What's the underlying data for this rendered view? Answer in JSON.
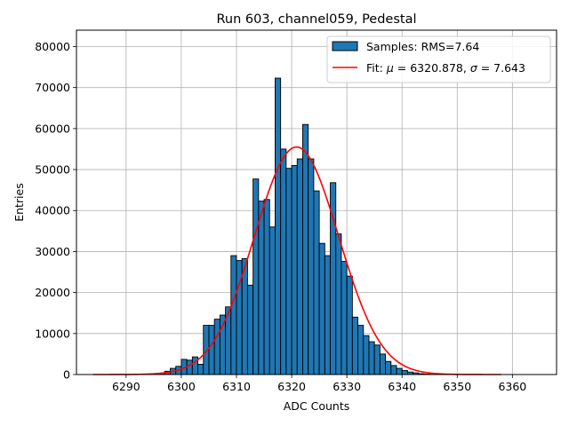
{
  "chart_data": {
    "type": "bar",
    "title": "Run 603, channel059, Pedestal",
    "xlabel": "ADC Counts",
    "ylabel": "Entries",
    "xlim": [
      6281,
      6368
    ],
    "ylim": [
      0,
      84000
    ],
    "xticks": [
      6290,
      6300,
      6310,
      6320,
      6330,
      6340,
      6350,
      6360
    ],
    "yticks": [
      0,
      10000,
      20000,
      30000,
      40000,
      50000,
      60000,
      70000,
      80000
    ],
    "grid": true,
    "legend_position": "top-right",
    "bar_color": "#1f77b4",
    "fit_color": "#ff0000",
    "legend": {
      "samples_label": "Samples: RMS=7.64",
      "fit_prefix": "Fit: ",
      "mu_symbol": "μ",
      "mu_text": " = 6320.878, ",
      "sigma_symbol": "σ",
      "sigma_text": " = 7.643"
    },
    "fit": {
      "mu": 6320.878,
      "sigma": 7.643,
      "amplitude": 55500,
      "x_range": [
        6284,
        6358
      ]
    },
    "bins": {
      "left_edges": [
        6296,
        6297,
        6298,
        6299,
        6300,
        6301,
        6302,
        6303,
        6304,
        6305,
        6306,
        6307,
        6308,
        6309,
        6310,
        6311,
        6312,
        6313,
        6314,
        6315,
        6316,
        6317,
        6318,
        6319,
        6320,
        6321,
        6322,
        6323,
        6324,
        6325,
        6326,
        6327,
        6328,
        6329,
        6330,
        6331,
        6332,
        6333,
        6334,
        6335,
        6336,
        6337,
        6338,
        6339,
        6340,
        6341,
        6342,
        6343,
        6344,
        6345
      ],
      "counts": [
        300,
        800,
        1500,
        2000,
        3700,
        3500,
        4300,
        2500,
        12000,
        12000,
        13500,
        14500,
        16500,
        29000,
        27800,
        28300,
        21800,
        47700,
        42300,
        42700,
        36000,
        72300,
        55000,
        50300,
        51000,
        52600,
        61000,
        52600,
        44800,
        32000,
        29000,
        46800,
        34300,
        27600,
        24000,
        14000,
        12000,
        9500,
        8000,
        7200,
        5000,
        3200,
        2200,
        1500,
        1000,
        600,
        400,
        200,
        100,
        50
      ]
    }
  }
}
